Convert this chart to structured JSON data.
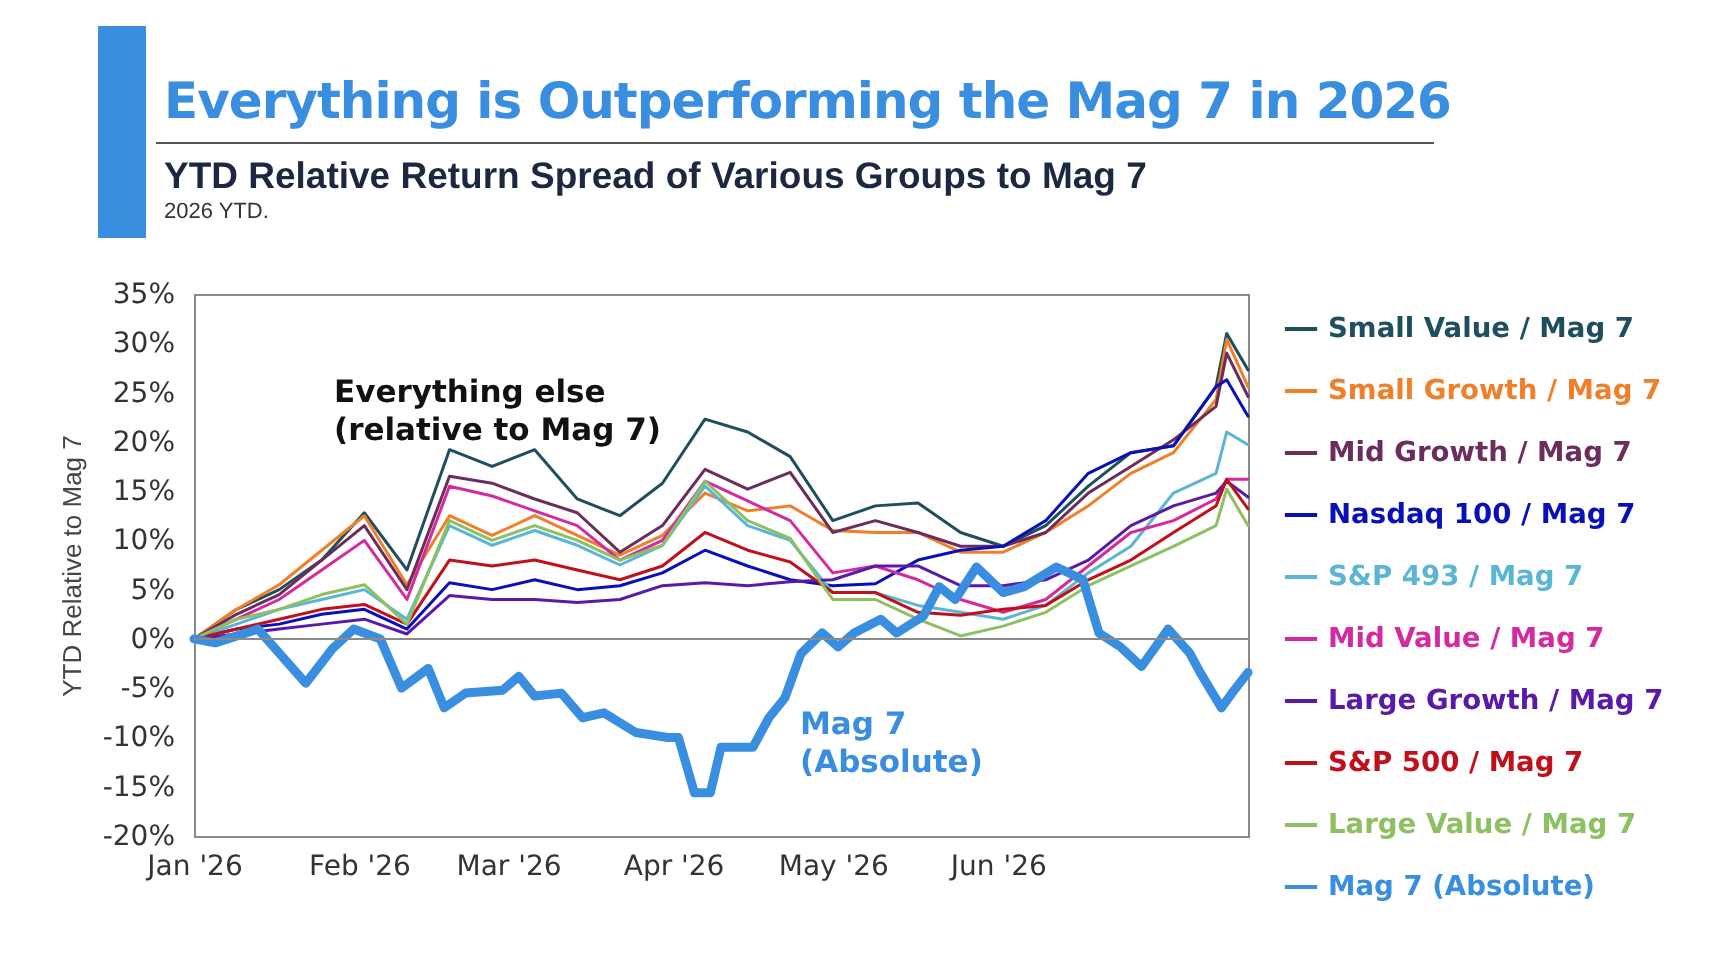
{
  "chart_data": {
    "type": "line",
    "title": "Everything is Outperforming the Mag 7 in 2026",
    "subtitle": "YTD Relative Return Spread of Various Groups to Mag 7",
    "ylabel": "YTD Relative to Mag 7",
    "annotations": [
      "2026 YTD.",
      "Everything else\n(relative to Mag 7)",
      "Mag 7\n(Absolute)"
    ],
    "x": [
      "2026-01-01",
      "2026-01-09",
      "2026-01-17",
      "2026-01-25",
      "2026-02-02",
      "2026-02-10",
      "2026-02-18",
      "2026-02-26",
      "2026-03-06",
      "2026-03-14",
      "2026-03-22",
      "2026-03-30",
      "2026-04-07",
      "2026-04-15",
      "2026-04-23",
      "2026-05-01",
      "2026-05-09",
      "2026-05-17",
      "2026-05-25",
      "2026-06-02",
      "2026-06-10",
      "2026-06-18",
      "2026-06-26",
      "2026-07-04",
      "2026-07-12",
      "2026-07-14",
      "2026-07-18"
    ],
    "series": [
      {
        "name": "Small Value / Mag 7",
        "color": "#1f4e5f",
        "values": [
          0,
          3,
          5,
          8,
          12.8,
          7,
          19.2,
          17.5,
          19.2,
          14.2,
          12.5,
          15.8,
          22.3,
          21,
          18.5,
          12,
          13.5,
          13.8,
          10.8,
          9.4,
          11.5,
          15.5,
          18.9,
          19.6,
          25.6,
          31,
          27.3
        ]
      },
      {
        "name": "Small Growth / Mag 7",
        "color": "#f07f2a",
        "values": [
          0,
          3,
          5.5,
          9,
          12.5,
          5.5,
          12.5,
          10.5,
          12.5,
          10.5,
          8.5,
          10.5,
          14.8,
          13,
          13.5,
          11,
          10.8,
          10.8,
          8.8,
          8.8,
          10.8,
          13.5,
          16.8,
          18.9,
          24.3,
          30.4,
          25.6
        ]
      },
      {
        "name": "Mid Growth / Mag 7",
        "color": "#6b2d5c",
        "values": [
          0,
          2.5,
          4.5,
          8,
          11.5,
          5,
          16.5,
          15.8,
          14.2,
          12.8,
          8.8,
          11.5,
          17.2,
          15.2,
          16.9,
          10.8,
          12,
          10.8,
          9.4,
          9.4,
          10.8,
          14.8,
          17.5,
          20.2,
          23.6,
          29,
          24.6
        ]
      },
      {
        "name": "Nasdaq 100 / Mag 7",
        "color": "#0a10b8",
        "values": [
          0,
          1,
          1.5,
          2.5,
          3,
          1,
          5.7,
          5,
          6,
          5,
          5.4,
          6.7,
          9,
          7.4,
          6,
          5.4,
          5.6,
          8,
          9,
          9.4,
          12,
          16.8,
          18.9,
          19.6,
          25.6,
          26.3,
          22.6
        ]
      },
      {
        "name": "S&P 493 / Mag 7",
        "color": "#5bb5d5",
        "values": [
          0,
          1.5,
          3,
          4,
          5,
          2,
          11.5,
          9.5,
          11,
          9.5,
          7.5,
          9.5,
          15.5,
          11.5,
          10,
          4.7,
          4.7,
          3.4,
          2.7,
          2,
          3.4,
          6.7,
          9.4,
          14.8,
          16.8,
          21,
          19.7
        ]
      },
      {
        "name": "Mid Value / Mag 7",
        "color": "#d42aa0",
        "values": [
          0,
          2,
          4,
          7,
          10,
          4,
          15.5,
          14.5,
          13,
          11.5,
          8,
          10,
          16,
          14,
          12,
          6.7,
          7.4,
          6,
          4,
          2.7,
          4,
          7.4,
          10.8,
          12,
          14.2,
          16.2,
          16.2
        ]
      },
      {
        "name": "Large Growth / Mag 7",
        "color": "#5a1aa8",
        "values": [
          0,
          0.5,
          1,
          1.5,
          2,
          0.5,
          4.4,
          4,
          4,
          3.7,
          4,
          5.4,
          5.7,
          5.4,
          5.8,
          6,
          7.4,
          7.4,
          5.4,
          5.4,
          6,
          8,
          11.5,
          13.5,
          14.8,
          16,
          14.4
        ]
      },
      {
        "name": "S&P 500 / Mag 7",
        "color": "#c0101c",
        "values": [
          0,
          1,
          2,
          3,
          3.5,
          1.5,
          8,
          7.4,
          8,
          7,
          6,
          7.4,
          10.8,
          9,
          7.8,
          4.7,
          4.7,
          2.7,
          2.4,
          3,
          3.4,
          6,
          8,
          10.8,
          13.5,
          16.2,
          13.2
        ]
      },
      {
        "name": "Large Value / Mag 7",
        "color": "#8cc060",
        "values": [
          0,
          2,
          3,
          4.5,
          5.5,
          1.5,
          12,
          10,
          11.5,
          10,
          8,
          9.5,
          16,
          12,
          10.2,
          4,
          4,
          2,
          0.3,
          1.3,
          2.7,
          5.4,
          7.4,
          9.4,
          11.5,
          15.2,
          11.5
        ]
      },
      {
        "name": "Mag 7 (Absolute)",
        "color": "#3a8ee0",
        "x": [
          "2026-01-01",
          "2026-01-05",
          "2026-01-13",
          "2026-01-22",
          "2026-01-27",
          "2026-01-31",
          "2026-02-05",
          "2026-02-09",
          "2026-02-14",
          "2026-02-17",
          "2026-02-21",
          "2026-02-28",
          "2026-03-03",
          "2026-03-06",
          "2026-03-11",
          "2026-03-15",
          "2026-03-19",
          "2026-03-25",
          "2026-03-31",
          "2026-04-02",
          "2026-04-05",
          "2026-04-08",
          "2026-04-10",
          "2026-04-16",
          "2026-04-19",
          "2026-04-22",
          "2026-04-25",
          "2026-04-29",
          "2026-05-02",
          "2026-05-05",
          "2026-05-10",
          "2026-05-13",
          "2026-05-18",
          "2026-05-21",
          "2026-05-24",
          "2026-05-28",
          "2026-06-02",
          "2026-06-06",
          "2026-06-12",
          "2026-06-17",
          "2026-06-20",
          "2026-06-24",
          "2026-06-28",
          "2026-07-03",
          "2026-07-07",
          "2026-07-09",
          "2026-07-13",
          "2026-07-15",
          "2026-07-18"
        ],
        "values": [
          0,
          -0.4,
          1,
          -4.5,
          -1,
          1,
          0,
          -5,
          -3,
          -7,
          -5.5,
          -5.2,
          -3.8,
          -5.8,
          -5.5,
          -8,
          -7.5,
          -9.5,
          -10,
          -10,
          -15.6,
          -15.6,
          -11,
          -11,
          -8,
          -6,
          -1.5,
          0.6,
          -0.8,
          0.6,
          2,
          0.6,
          2.3,
          5.3,
          4,
          7.3,
          4.7,
          5.3,
          7.3,
          6,
          0.6,
          -0.8,
          -2.8,
          1,
          -1.4,
          -3.4,
          -7,
          -5.5,
          -3.4
        ]
      }
    ],
    "xlim": [
      "2026-01-01",
      "2026-07-18"
    ],
    "xticks": [
      {
        "value": "2026-01-01",
        "label": "Jan '26"
      },
      {
        "value": "2026-02-01",
        "label": "Feb '26"
      },
      {
        "value": "2026-03-01",
        "label": "Mar '26"
      },
      {
        "value": "2026-04-01",
        "label": "Apr '26"
      },
      {
        "value": "2026-05-01",
        "label": "May '26"
      },
      {
        "value": "2026-06-01",
        "label": "Jun '26"
      }
    ],
    "ylim": [
      -20,
      35
    ],
    "yticks": [
      {
        "value": -20,
        "label": "-20%"
      },
      {
        "value": -15,
        "label": "-15%"
      },
      {
        "value": -10,
        "label": "-10%"
      },
      {
        "value": -5,
        "label": "-5%"
      },
      {
        "value": 0,
        "label": "0%"
      },
      {
        "value": 5,
        "label": "5%"
      },
      {
        "value": 10,
        "label": "10%"
      },
      {
        "value": 15,
        "label": "15%"
      },
      {
        "value": 20,
        "label": "20%"
      },
      {
        "value": 25,
        "label": "25%"
      },
      {
        "value": 30,
        "label": "30%"
      },
      {
        "value": 35,
        "label": "35%"
      }
    ],
    "grid": false,
    "legend": "right",
    "ref_lines": [
      {
        "axis": "y",
        "value": 0,
        "color": "#8a8a8a"
      }
    ]
  }
}
